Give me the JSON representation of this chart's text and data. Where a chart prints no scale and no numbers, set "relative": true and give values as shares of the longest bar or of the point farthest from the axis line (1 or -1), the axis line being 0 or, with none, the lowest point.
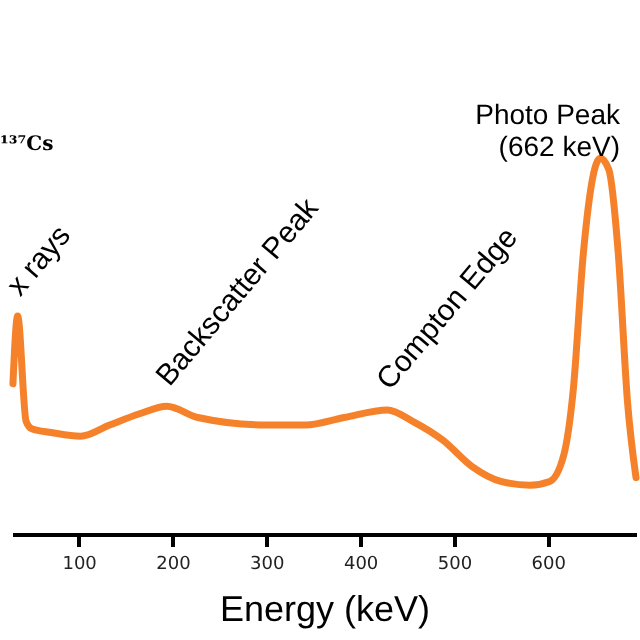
{
  "chart_data": {
    "type": "line",
    "relative": true,
    "xlabel": "Energy (keV)",
    "xlim": [
      29,
      694
    ],
    "xticks": [
      100,
      200,
      300,
      400,
      500,
      600
    ],
    "x": [
      30,
      35,
      44,
      50,
      71,
      102,
      133,
      165,
      194,
      227,
      300,
      342,
      383,
      429,
      456,
      488,
      519,
      550,
      581,
      602,
      617,
      627,
      638,
      648,
      656,
      665,
      675,
      685,
      694
    ],
    "series": [
      {
        "color": "#f5822a",
        "values": [
          0.4,
          0.58,
          0.3,
          0.28,
          0.27,
          0.26,
          0.29,
          0.32,
          0.34,
          0.31,
          0.29,
          0.29,
          0.31,
          0.33,
          0.3,
          0.25,
          0.18,
          0.14,
          0.13,
          0.14,
          0.21,
          0.38,
          0.75,
          0.95,
          1,
          0.97,
          0.75,
          0.35,
          0.15
        ]
      }
    ],
    "annotations": [
      "¹³⁷Cs",
      {
        "text": "x rays",
        "x": 35,
        "y": 0.58
      },
      {
        "text": "Backscatter Peak",
        "x": 194,
        "y": 0.34
      },
      {
        "text": "Compton Edge",
        "x": 429,
        "y": 0.33
      },
      {
        "text": "Photo Peak\n(662 keV)",
        "x": 656,
        "y": 1
      }
    ],
    "grid": false,
    "marker": "none",
    "line_style": "solid"
  }
}
